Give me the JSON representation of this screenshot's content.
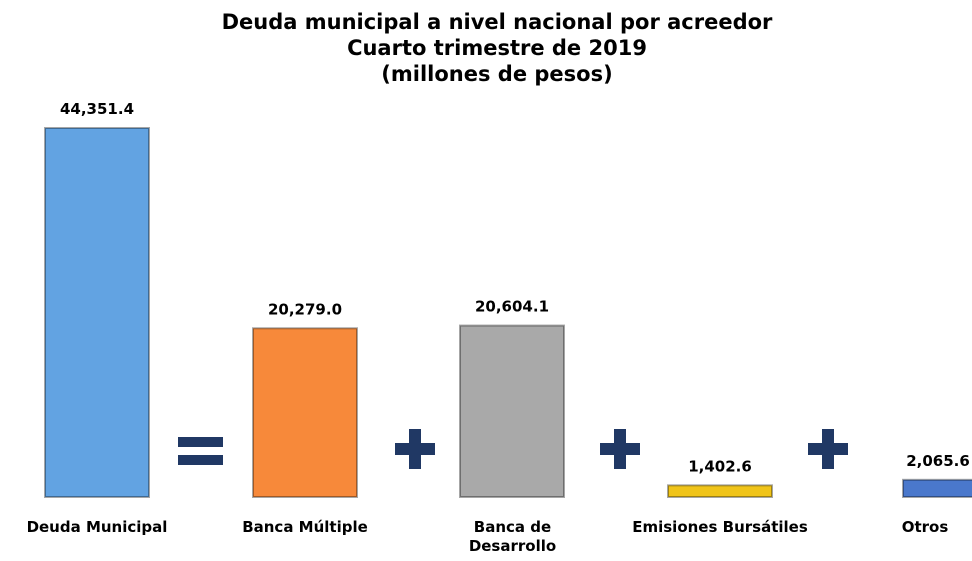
{
  "chart_data": {
    "type": "bar",
    "title": "Deuda municipal a nivel nacional por acreedor",
    "subtitle": [
      "Cuarto trimestre de 2019",
      "(millones de pesos)"
    ],
    "categories": [
      "Deuda Municipal",
      "Banca Múltiple",
      "Banca de Desarrollo",
      "Emisiones Bursátiles",
      "Otros"
    ],
    "values": [
      44351.4,
      20279.0,
      20604.1,
      1402.6,
      2065.6
    ],
    "value_labels": [
      "44,351.4",
      "20,279.0",
      "20,604.1",
      "1,402.6",
      "2,065.6"
    ],
    "colors": [
      "#62a3e2",
      "#f7893a",
      "#a9a9a9",
      "#f0c419",
      "#4a78cc"
    ]
  }
}
